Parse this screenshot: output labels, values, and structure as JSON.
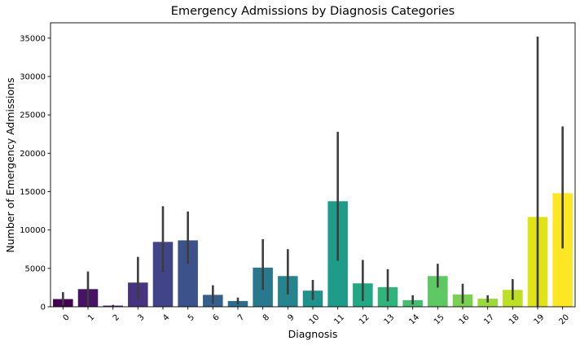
{
  "chart_data": {
    "type": "bar",
    "title": "Emergency Admissions by Diagnosis Categories",
    "xlabel": "Diagnosis",
    "ylabel": "Number of Emergency Admissions",
    "categories": [
      "0",
      "1",
      "2",
      "3",
      "4",
      "5",
      "6",
      "7",
      "8",
      "9",
      "10",
      "11",
      "12",
      "13",
      "14",
      "15",
      "16",
      "17",
      "18",
      "19",
      "20"
    ],
    "values": [
      1000,
      2300,
      150,
      3150,
      8450,
      8650,
      1550,
      750,
      5100,
      4000,
      2100,
      13750,
      3050,
      2550,
      850,
      4000,
      1600,
      1050,
      2200,
      11700,
      14800
    ],
    "error_low": [
      200,
      100,
      0,
      1000,
      4500,
      5600,
      400,
      300,
      2200,
      1600,
      900,
      6000,
      750,
      700,
      300,
      2500,
      400,
      550,
      900,
      0,
      7600
    ],
    "error_high": [
      1900,
      4600,
      250,
      6500,
      13100,
      12400,
      2800,
      1200,
      8800,
      7500,
      3500,
      22800,
      6100,
      4900,
      1500,
      5600,
      3000,
      1500,
      3600,
      35200,
      23500
    ],
    "colors": [
      "#440154",
      "#471365",
      "#482475",
      "#463480",
      "#414487",
      "#3b528b",
      "#355f8d",
      "#2f6c8e",
      "#2a788e",
      "#25848e",
      "#21918c",
      "#1e9c89",
      "#22a884",
      "#2fb47c",
      "#44bf70",
      "#5ec962",
      "#7ad151",
      "#9bd93c",
      "#bddf26",
      "#dfe318",
      "#fde725"
    ],
    "ylim": [
      0,
      37000
    ],
    "yticks": [
      0,
      5000,
      10000,
      15000,
      20000,
      25000,
      30000,
      35000
    ],
    "grid": false,
    "legend": "none"
  }
}
